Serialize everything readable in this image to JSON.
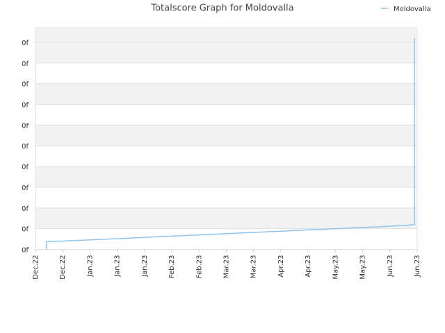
{
  "chart_data": {
    "type": "line",
    "title": "Totalscore Graph for Moldovalla",
    "legend": "top-right",
    "grid": true,
    "x": [
      0.4,
      0.4,
      1,
      1.5,
      2,
      2.5,
      3,
      3.5,
      4,
      4.5,
      5,
      5.5,
      6,
      6.5,
      7,
      7.5,
      8,
      8.5,
      9,
      9.5,
      10,
      10.5,
      11,
      11.5,
      12,
      12.5,
      13,
      13.5,
      13.9,
      13.9
    ],
    "series": [
      {
        "name": "Moldovalla",
        "color": "#8ec3f0",
        "values": [
          0,
          0.38,
          0.4,
          0.43,
          0.46,
          0.49,
          0.52,
          0.55,
          0.58,
          0.61,
          0.64,
          0.67,
          0.7,
          0.73,
          0.76,
          0.79,
          0.82,
          0.85,
          0.88,
          0.91,
          0.94,
          0.97,
          1.0,
          1.03,
          1.06,
          1.09,
          1.12,
          1.15,
          1.2,
          10.2
        ]
      }
    ],
    "xlim": [
      0,
      14
    ],
    "xticks": [
      {
        "value": 0,
        "label": "Dec.22"
      },
      {
        "value": 1,
        "label": "Dec.22"
      },
      {
        "value": 2,
        "label": "Jan.23"
      },
      {
        "value": 3,
        "label": "Jan.23"
      },
      {
        "value": 4,
        "label": "Jan.23"
      },
      {
        "value": 5,
        "label": "Feb.23"
      },
      {
        "value": 6,
        "label": "Feb.23"
      },
      {
        "value": 7,
        "label": "Mar.23"
      },
      {
        "value": 8,
        "label": "Mar.23"
      },
      {
        "value": 9,
        "label": "Apr.23"
      },
      {
        "value": 10,
        "label": "Apr.23"
      },
      {
        "value": 11,
        "label": "May.23"
      },
      {
        "value": 12,
        "label": "May.23"
      },
      {
        "value": 13,
        "label": "Jun.23"
      },
      {
        "value": 14,
        "label": "Jun.23"
      }
    ],
    "ylim": [
      0,
      10.7
    ],
    "yticks": [
      {
        "value": 0,
        "label": "0f"
      },
      {
        "value": 1,
        "label": "0f"
      },
      {
        "value": 2,
        "label": "0f"
      },
      {
        "value": 3,
        "label": "0f"
      },
      {
        "value": 4,
        "label": "0f"
      },
      {
        "value": 5,
        "label": "0f"
      },
      {
        "value": 6,
        "label": "0f"
      },
      {
        "value": 7,
        "label": "0f"
      },
      {
        "value": 8,
        "label": "0f"
      },
      {
        "value": 9,
        "label": "0f"
      },
      {
        "value": 10,
        "label": "0f"
      }
    ]
  }
}
